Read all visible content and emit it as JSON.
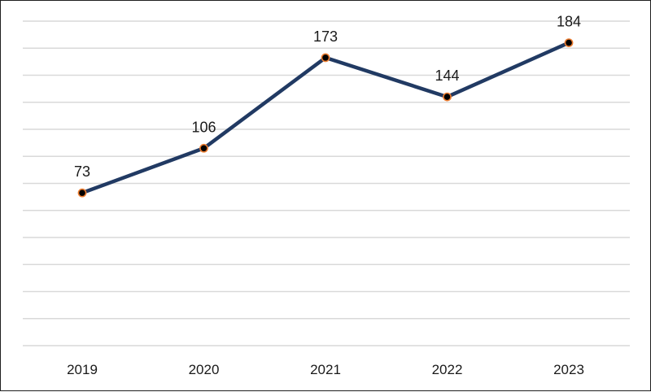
{
  "chart_data": {
    "type": "line",
    "categories": [
      "2019",
      "2020",
      "2021",
      "2022",
      "2023"
    ],
    "series": [
      {
        "values": [
          73,
          106,
          173,
          144,
          184
        ]
      }
    ],
    "data_labels": [
      "73",
      "106",
      "173",
      "144",
      "184"
    ],
    "ylim": [
      -40,
      200
    ],
    "grid": true,
    "line_color": "#213a63",
    "marker_fill": "#000000",
    "marker_edge_color": "#ed7d31"
  }
}
